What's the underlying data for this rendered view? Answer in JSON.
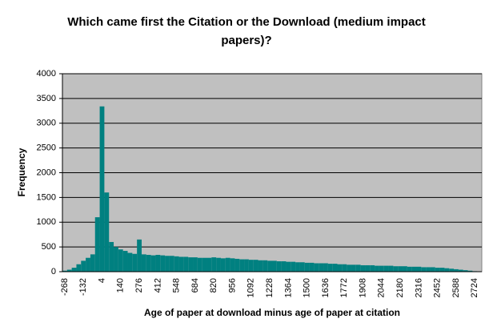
{
  "chart_data": {
    "type": "bar",
    "title": "Which came first the Citation or the Download (medium impact papers)?",
    "x_label": "Age of paper at download minus age of paper at citation",
    "y_label": "Frequency",
    "color": "#008080",
    "grid": true,
    "ylim": [
      0,
      4000
    ],
    "yticks": [
      0,
      500,
      1000,
      1500,
      2000,
      2500,
      3000,
      3500,
      4000
    ],
    "categories": [
      -268,
      null,
      null,
      null,
      -132,
      null,
      null,
      null,
      4,
      null,
      null,
      null,
      140,
      null,
      null,
      null,
      276,
      null,
      null,
      null,
      412,
      null,
      null,
      null,
      548,
      null,
      null,
      null,
      684,
      null,
      null,
      null,
      820,
      null,
      null,
      null,
      956,
      null,
      null,
      null,
      1092,
      null,
      null,
      null,
      1228,
      null,
      null,
      null,
      1364,
      null,
      null,
      null,
      1500,
      null,
      null,
      null,
      1636,
      null,
      null,
      null,
      1772,
      null,
      null,
      null,
      1908,
      null,
      null,
      null,
      2044,
      null,
      null,
      null,
      2180,
      null,
      null,
      null,
      2316,
      null,
      null,
      null,
      2452,
      null,
      null,
      null,
      2588,
      null,
      null,
      null,
      2724,
      null
    ],
    "values": [
      20,
      40,
      80,
      150,
      220,
      280,
      350,
      1100,
      3340,
      1600,
      600,
      500,
      450,
      420,
      380,
      360,
      650,
      350,
      340,
      330,
      340,
      330,
      320,
      320,
      310,
      300,
      300,
      290,
      290,
      280,
      280,
      280,
      290,
      280,
      270,
      280,
      270,
      260,
      250,
      250,
      240,
      240,
      230,
      230,
      220,
      220,
      210,
      210,
      200,
      200,
      190,
      190,
      180,
      180,
      170,
      170,
      170,
      160,
      160,
      150,
      150,
      140,
      140,
      140,
      130,
      130,
      130,
      120,
      120,
      120,
      120,
      110,
      110,
      110,
      100,
      100,
      100,
      90,
      90,
      90,
      80,
      80,
      70,
      60,
      50,
      40,
      30,
      20,
      10,
      5
    ]
  }
}
